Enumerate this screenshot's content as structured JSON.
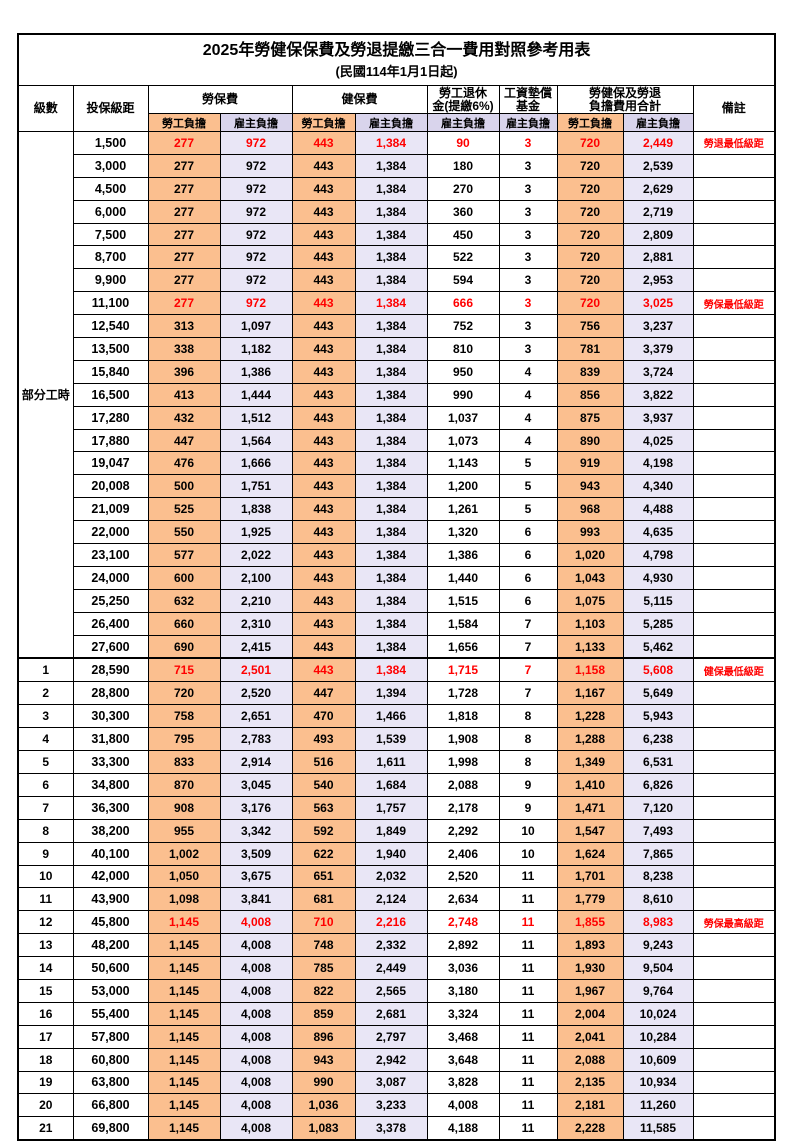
{
  "title": "2025年勞健保保費及勞退提繳三合一費用對照參考用表",
  "subtitle": "(民國114年1月1日起)",
  "columns": {
    "level": "級數",
    "bracket": "投保級距",
    "labor_fee": "勞保費",
    "health_fee": "健保費",
    "pension": [
      "勞工退休",
      "金(提繳6%)"
    ],
    "wage_fund": [
      "工資墊償",
      "基金"
    ],
    "total": [
      "勞健保及勞退",
      "負擔費用合計"
    ],
    "remark": "備註",
    "employee": "勞工負擔",
    "employer": "雇主負擔"
  },
  "colors": {
    "employee_bg": "#FBBF8F",
    "employer_header_bg": "#D9D4EC",
    "employer_cell_bg": "#E9E6F6",
    "highlight_text": "#FF0000"
  },
  "part_time_label": "部分工時",
  "rows": [
    {
      "bracket": "1,500",
      "values": [
        "277",
        "972",
        "443",
        "1,384",
        "90",
        "3",
        "720",
        "2,449"
      ],
      "remark": "勞退最低級距",
      "red": true
    },
    {
      "bracket": "3,000",
      "values": [
        "277",
        "972",
        "443",
        "1,384",
        "180",
        "3",
        "720",
        "2,539"
      ]
    },
    {
      "bracket": "4,500",
      "values": [
        "277",
        "972",
        "443",
        "1,384",
        "270",
        "3",
        "720",
        "2,629"
      ]
    },
    {
      "bracket": "6,000",
      "values": [
        "277",
        "972",
        "443",
        "1,384",
        "360",
        "3",
        "720",
        "2,719"
      ]
    },
    {
      "bracket": "7,500",
      "values": [
        "277",
        "972",
        "443",
        "1,384",
        "450",
        "3",
        "720",
        "2,809"
      ]
    },
    {
      "bracket": "8,700",
      "values": [
        "277",
        "972",
        "443",
        "1,384",
        "522",
        "3",
        "720",
        "2,881"
      ]
    },
    {
      "bracket": "9,900",
      "values": [
        "277",
        "972",
        "443",
        "1,384",
        "594",
        "3",
        "720",
        "2,953"
      ]
    },
    {
      "bracket": "11,100",
      "values": [
        "277",
        "972",
        "443",
        "1,384",
        "666",
        "3",
        "720",
        "3,025"
      ],
      "remark": "勞保最低級距",
      "red": true
    },
    {
      "bracket": "12,540",
      "values": [
        "313",
        "1,097",
        "443",
        "1,384",
        "752",
        "3",
        "756",
        "3,237"
      ]
    },
    {
      "bracket": "13,500",
      "values": [
        "338",
        "1,182",
        "443",
        "1,384",
        "810",
        "3",
        "781",
        "3,379"
      ]
    },
    {
      "bracket": "15,840",
      "values": [
        "396",
        "1,386",
        "443",
        "1,384",
        "950",
        "4",
        "839",
        "3,724"
      ]
    },
    {
      "bracket": "16,500",
      "values": [
        "413",
        "1,444",
        "443",
        "1,384",
        "990",
        "4",
        "856",
        "3,822"
      ]
    },
    {
      "bracket": "17,280",
      "values": [
        "432",
        "1,512",
        "443",
        "1,384",
        "1,037",
        "4",
        "875",
        "3,937"
      ]
    },
    {
      "bracket": "17,880",
      "values": [
        "447",
        "1,564",
        "443",
        "1,384",
        "1,073",
        "4",
        "890",
        "4,025"
      ]
    },
    {
      "bracket": "19,047",
      "values": [
        "476",
        "1,666",
        "443",
        "1,384",
        "1,143",
        "5",
        "919",
        "4,198"
      ]
    },
    {
      "bracket": "20,008",
      "values": [
        "500",
        "1,751",
        "443",
        "1,384",
        "1,200",
        "5",
        "943",
        "4,340"
      ]
    },
    {
      "bracket": "21,009",
      "values": [
        "525",
        "1,838",
        "443",
        "1,384",
        "1,261",
        "5",
        "968",
        "4,488"
      ]
    },
    {
      "bracket": "22,000",
      "values": [
        "550",
        "1,925",
        "443",
        "1,384",
        "1,320",
        "6",
        "993",
        "4,635"
      ]
    },
    {
      "bracket": "23,100",
      "values": [
        "577",
        "2,022",
        "443",
        "1,384",
        "1,386",
        "6",
        "1,020",
        "4,798"
      ]
    },
    {
      "bracket": "24,000",
      "values": [
        "600",
        "2,100",
        "443",
        "1,384",
        "1,440",
        "6",
        "1,043",
        "4,930"
      ]
    },
    {
      "bracket": "25,250",
      "values": [
        "632",
        "2,210",
        "443",
        "1,384",
        "1,515",
        "6",
        "1,075",
        "5,115"
      ]
    },
    {
      "bracket": "26,400",
      "values": [
        "660",
        "2,310",
        "443",
        "1,384",
        "1,584",
        "7",
        "1,103",
        "5,285"
      ]
    },
    {
      "bracket": "27,600",
      "values": [
        "690",
        "2,415",
        "443",
        "1,384",
        "1,656",
        "7",
        "1,133",
        "5,462"
      ]
    },
    {
      "level": "1",
      "bracket": "28,590",
      "values": [
        "715",
        "2,501",
        "443",
        "1,384",
        "1,715",
        "7",
        "1,158",
        "5,608"
      ],
      "remark": "健保最低級距",
      "red": true,
      "section": true
    },
    {
      "level": "2",
      "bracket": "28,800",
      "values": [
        "720",
        "2,520",
        "447",
        "1,394",
        "1,728",
        "7",
        "1,167",
        "5,649"
      ]
    },
    {
      "level": "3",
      "bracket": "30,300",
      "values": [
        "758",
        "2,651",
        "470",
        "1,466",
        "1,818",
        "8",
        "1,228",
        "5,943"
      ]
    },
    {
      "level": "4",
      "bracket": "31,800",
      "values": [
        "795",
        "2,783",
        "493",
        "1,539",
        "1,908",
        "8",
        "1,288",
        "6,238"
      ]
    },
    {
      "level": "5",
      "bracket": "33,300",
      "values": [
        "833",
        "2,914",
        "516",
        "1,611",
        "1,998",
        "8",
        "1,349",
        "6,531"
      ]
    },
    {
      "level": "6",
      "bracket": "34,800",
      "values": [
        "870",
        "3,045",
        "540",
        "1,684",
        "2,088",
        "9",
        "1,410",
        "6,826"
      ]
    },
    {
      "level": "7",
      "bracket": "36,300",
      "values": [
        "908",
        "3,176",
        "563",
        "1,757",
        "2,178",
        "9",
        "1,471",
        "7,120"
      ]
    },
    {
      "level": "8",
      "bracket": "38,200",
      "values": [
        "955",
        "3,342",
        "592",
        "1,849",
        "2,292",
        "10",
        "1,547",
        "7,493"
      ]
    },
    {
      "level": "9",
      "bracket": "40,100",
      "values": [
        "1,002",
        "3,509",
        "622",
        "1,940",
        "2,406",
        "10",
        "1,624",
        "7,865"
      ]
    },
    {
      "level": "10",
      "bracket": "42,000",
      "values": [
        "1,050",
        "3,675",
        "651",
        "2,032",
        "2,520",
        "11",
        "1,701",
        "8,238"
      ]
    },
    {
      "level": "11",
      "bracket": "43,900",
      "values": [
        "1,098",
        "3,841",
        "681",
        "2,124",
        "2,634",
        "11",
        "1,779",
        "8,610"
      ]
    },
    {
      "level": "12",
      "bracket": "45,800",
      "values": [
        "1,145",
        "4,008",
        "710",
        "2,216",
        "2,748",
        "11",
        "1,855",
        "8,983"
      ],
      "remark": "勞保最高級距",
      "red": true
    },
    {
      "level": "13",
      "bracket": "48,200",
      "values": [
        "1,145",
        "4,008",
        "748",
        "2,332",
        "2,892",
        "11",
        "1,893",
        "9,243"
      ]
    },
    {
      "level": "14",
      "bracket": "50,600",
      "values": [
        "1,145",
        "4,008",
        "785",
        "2,449",
        "3,036",
        "11",
        "1,930",
        "9,504"
      ]
    },
    {
      "level": "15",
      "bracket": "53,000",
      "values": [
        "1,145",
        "4,008",
        "822",
        "2,565",
        "3,180",
        "11",
        "1,967",
        "9,764"
      ]
    },
    {
      "level": "16",
      "bracket": "55,400",
      "values": [
        "1,145",
        "4,008",
        "859",
        "2,681",
        "3,324",
        "11",
        "2,004",
        "10,024"
      ]
    },
    {
      "level": "17",
      "bracket": "57,800",
      "values": [
        "1,145",
        "4,008",
        "896",
        "2,797",
        "3,468",
        "11",
        "2,041",
        "10,284"
      ]
    },
    {
      "level": "18",
      "bracket": "60,800",
      "values": [
        "1,145",
        "4,008",
        "943",
        "2,942",
        "3,648",
        "11",
        "2,088",
        "10,609"
      ]
    },
    {
      "level": "19",
      "bracket": "63,800",
      "values": [
        "1,145",
        "4,008",
        "990",
        "3,087",
        "3,828",
        "11",
        "2,135",
        "10,934"
      ]
    },
    {
      "level": "20",
      "bracket": "66,800",
      "values": [
        "1,145",
        "4,008",
        "1,036",
        "3,233",
        "4,008",
        "11",
        "2,181",
        "11,260"
      ]
    },
    {
      "level": "21",
      "bracket": "69,800",
      "values": [
        "1,145",
        "4,008",
        "1,083",
        "3,378",
        "4,188",
        "11",
        "2,228",
        "11,585"
      ]
    }
  ]
}
